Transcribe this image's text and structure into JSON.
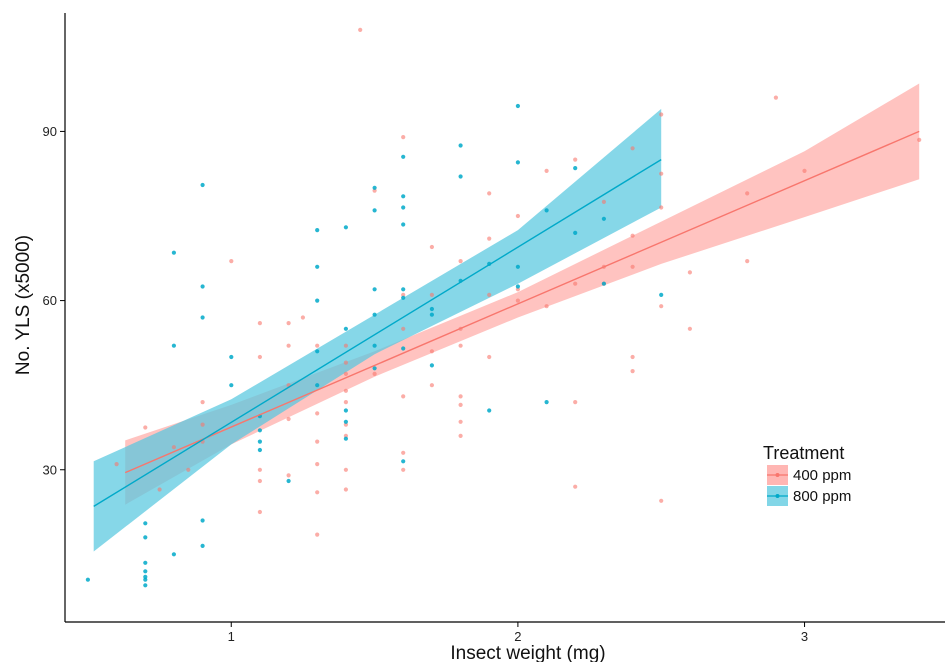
{
  "chart_data": {
    "type": "scatter",
    "title": "",
    "xlabel": "Insect weight (mg)",
    "ylabel": "No. YLS (x5000)",
    "xlim": [
      0.42,
      3.49
    ],
    "ylim": [
      3,
      111
    ],
    "x_ticks": [
      1,
      2,
      3
    ],
    "y_ticks": [
      30,
      60,
      90
    ],
    "grid": false,
    "legend": {
      "title": "Treatment",
      "position": "right"
    },
    "series": [
      {
        "name": "400 ppm",
        "color": "#F8766D",
        "ribbon_color": "#FF9E9A",
        "fit": {
          "x": [
            0.63,
            3.4
          ],
          "y": [
            29.5,
            90.0
          ]
        },
        "band": [
          {
            "x": 0.63,
            "lo": 23.8,
            "hi": 35.2
          },
          {
            "x": 1.0,
            "lo": 34.5,
            "hi": 41.5
          },
          {
            "x": 1.5,
            "lo": 46.5,
            "hi": 51.0
          },
          {
            "x": 2.0,
            "lo": 57.0,
            "hi": 61.5
          },
          {
            "x": 2.5,
            "lo": 66.5,
            "hi": 74.0
          },
          {
            "x": 3.0,
            "lo": 74.8,
            "hi": 86.5
          },
          {
            "x": 3.4,
            "lo": 81.5,
            "hi": 98.5
          }
        ],
        "points": [
          [
            0.6,
            31
          ],
          [
            0.7,
            37.5
          ],
          [
            0.75,
            26.5
          ],
          [
            0.8,
            34
          ],
          [
            0.85,
            30
          ],
          [
            0.9,
            42
          ],
          [
            0.9,
            38
          ],
          [
            0.9,
            35
          ],
          [
            1.0,
            67
          ],
          [
            1.1,
            56
          ],
          [
            1.1,
            50
          ],
          [
            1.1,
            30
          ],
          [
            1.1,
            28
          ],
          [
            1.1,
            22.5
          ],
          [
            1.2,
            56
          ],
          [
            1.2,
            52
          ],
          [
            1.2,
            45
          ],
          [
            1.2,
            39
          ],
          [
            1.2,
            29
          ],
          [
            1.25,
            57
          ],
          [
            1.3,
            52
          ],
          [
            1.3,
            40
          ],
          [
            1.3,
            35
          ],
          [
            1.3,
            31
          ],
          [
            1.3,
            26
          ],
          [
            1.3,
            18.5
          ],
          [
            1.4,
            52
          ],
          [
            1.4,
            49
          ],
          [
            1.4,
            47
          ],
          [
            1.4,
            44
          ],
          [
            1.4,
            42
          ],
          [
            1.4,
            38
          ],
          [
            1.4,
            36
          ],
          [
            1.4,
            30
          ],
          [
            1.4,
            26.5
          ],
          [
            1.45,
            108
          ],
          [
            1.5,
            79.5
          ],
          [
            1.5,
            47
          ],
          [
            1.6,
            89
          ],
          [
            1.6,
            61
          ],
          [
            1.6,
            55
          ],
          [
            1.6,
            43
          ],
          [
            1.6,
            33
          ],
          [
            1.6,
            30
          ],
          [
            1.7,
            69.5
          ],
          [
            1.7,
            61
          ],
          [
            1.7,
            51
          ],
          [
            1.7,
            45
          ],
          [
            1.8,
            67
          ],
          [
            1.8,
            55
          ],
          [
            1.8,
            52
          ],
          [
            1.8,
            43
          ],
          [
            1.8,
            41.5
          ],
          [
            1.8,
            38.5
          ],
          [
            1.8,
            36
          ],
          [
            1.9,
            79
          ],
          [
            1.9,
            71
          ],
          [
            1.9,
            61
          ],
          [
            1.9,
            50
          ],
          [
            2.0,
            75
          ],
          [
            2.0,
            62
          ],
          [
            2.0,
            60
          ],
          [
            2.1,
            83
          ],
          [
            2.1,
            59
          ],
          [
            2.2,
            85
          ],
          [
            2.2,
            63
          ],
          [
            2.2,
            42
          ],
          [
            2.2,
            27
          ],
          [
            2.3,
            77.5
          ],
          [
            2.3,
            66
          ],
          [
            2.3,
            63
          ],
          [
            2.4,
            87
          ],
          [
            2.4,
            71.5
          ],
          [
            2.4,
            66
          ],
          [
            2.4,
            50
          ],
          [
            2.4,
            47.5
          ],
          [
            2.5,
            93
          ],
          [
            2.5,
            82.5
          ],
          [
            2.5,
            76.5
          ],
          [
            2.5,
            59
          ],
          [
            2.5,
            24.5
          ],
          [
            2.6,
            65
          ],
          [
            2.6,
            55
          ],
          [
            2.8,
            79
          ],
          [
            2.8,
            67
          ],
          [
            2.9,
            96
          ],
          [
            3.0,
            83
          ],
          [
            3.4,
            88.5
          ]
        ]
      },
      {
        "name": "800 ppm",
        "color": "#00A9C9",
        "ribbon_color": "#58C8DF",
        "fit": {
          "x": [
            0.52,
            2.5
          ],
          "y": [
            23.5,
            85.0
          ]
        },
        "band": [
          {
            "x": 0.52,
            "lo": 15.5,
            "hi": 31.5
          },
          {
            "x": 1.0,
            "lo": 34.5,
            "hi": 42.5
          },
          {
            "x": 1.5,
            "lo": 50.5,
            "hi": 57.5
          },
          {
            "x": 2.0,
            "lo": 63.0,
            "hi": 72.5
          },
          {
            "x": 2.5,
            "lo": 76.5,
            "hi": 94.0
          }
        ],
        "points": [
          [
            0.5,
            10.5
          ],
          [
            0.7,
            20.5
          ],
          [
            0.7,
            18
          ],
          [
            0.7,
            13.5
          ],
          [
            0.7,
            12
          ],
          [
            0.7,
            11
          ],
          [
            0.7,
            10.5
          ],
          [
            0.7,
            9.5
          ],
          [
            0.8,
            68.5
          ],
          [
            0.8,
            52
          ],
          [
            0.8,
            15
          ],
          [
            0.9,
            80.5
          ],
          [
            0.9,
            62.5
          ],
          [
            0.9,
            57
          ],
          [
            0.9,
            21
          ],
          [
            0.9,
            16.5
          ],
          [
            1.0,
            50
          ],
          [
            1.0,
            45
          ],
          [
            1.1,
            39.5
          ],
          [
            1.1,
            37
          ],
          [
            1.1,
            35
          ],
          [
            1.1,
            33.5
          ],
          [
            1.2,
            28
          ],
          [
            1.3,
            72.5
          ],
          [
            1.3,
            66
          ],
          [
            1.3,
            60
          ],
          [
            1.3,
            51
          ],
          [
            1.3,
            45
          ],
          [
            1.4,
            73
          ],
          [
            1.4,
            55
          ],
          [
            1.4,
            40.5
          ],
          [
            1.4,
            38.5
          ],
          [
            1.4,
            35.5
          ],
          [
            1.5,
            80
          ],
          [
            1.5,
            76
          ],
          [
            1.5,
            62
          ],
          [
            1.5,
            57.5
          ],
          [
            1.5,
            52
          ],
          [
            1.5,
            48
          ],
          [
            1.6,
            85.5
          ],
          [
            1.6,
            78.5
          ],
          [
            1.6,
            76.5
          ],
          [
            1.6,
            73.5
          ],
          [
            1.6,
            62
          ],
          [
            1.6,
            60.5
          ],
          [
            1.6,
            51.5
          ],
          [
            1.6,
            31.5
          ],
          [
            1.7,
            58.5
          ],
          [
            1.7,
            57.5
          ],
          [
            1.7,
            48.5
          ],
          [
            1.8,
            87.5
          ],
          [
            1.8,
            82
          ],
          [
            1.8,
            63.5
          ],
          [
            1.9,
            66.5
          ],
          [
            1.9,
            40.5
          ],
          [
            2.0,
            94.5
          ],
          [
            2.0,
            84.5
          ],
          [
            2.0,
            66
          ],
          [
            2.0,
            62.5
          ],
          [
            2.1,
            76
          ],
          [
            2.1,
            42
          ],
          [
            2.2,
            83.5
          ],
          [
            2.2,
            72
          ],
          [
            2.3,
            74.5
          ],
          [
            2.3,
            63
          ],
          [
            2.5,
            61
          ]
        ]
      }
    ]
  }
}
